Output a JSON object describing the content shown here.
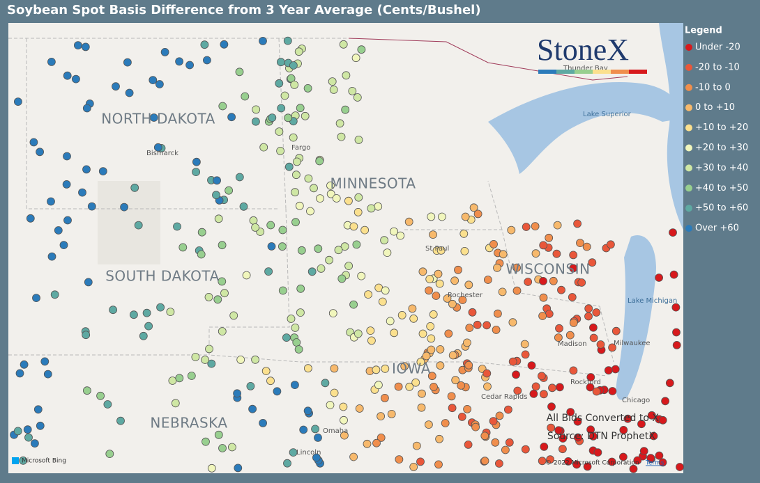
{
  "title": "Soybean Spot Basis Difference from 3 Year Average (Cents/Bushel)",
  "logo": "StoneX",
  "legend": {
    "title": "Legend",
    "items": [
      {
        "label": "Under -20",
        "color": "#d7191c"
      },
      {
        "label": "-20 to -10",
        "color": "#e9573a"
      },
      {
        "label": "-10 to 0",
        "color": "#f08e4c"
      },
      {
        "label": "0 to +10",
        "color": "#f7b96c"
      },
      {
        "label": "+10 to +20",
        "color": "#fbe08e"
      },
      {
        "label": "+20 to +30",
        "color": "#f1f6bc"
      },
      {
        "label": "+30 to +40",
        "color": "#cfe7a4"
      },
      {
        "label": "+40 to +50",
        "color": "#98cf8f"
      },
      {
        "label": "+50 to +60",
        "color": "#5ea9a2"
      },
      {
        "label": "Over +60",
        "color": "#2b7bba"
      }
    ]
  },
  "states": [
    "NORTH DAKOTA",
    "MINNESOTA",
    "SOUTH DAKOTA",
    "WISCONSIN",
    "NEBRASKA",
    "IOWA"
  ],
  "cities": [
    "Bismarck",
    "Fargo",
    "St Paul",
    "Rochester",
    "Madison",
    "Milwaukee",
    "Rockford",
    "Chicago",
    "Cedar Rapids",
    "Omaha",
    "Lincoln",
    "Thunder Bay"
  ],
  "lakes": [
    "Lake Superior",
    "Lake Michigan"
  ],
  "notes": [
    "All Bids Converted to X",
    "Source: DTN ProphetX"
  ],
  "attribution": {
    "bing": "Microsoft Bing",
    "copyright": "© 2022 Microsoft Corporation",
    "terms": "Terms"
  }
}
